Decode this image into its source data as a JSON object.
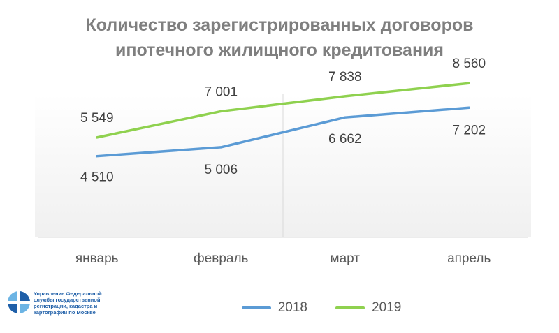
{
  "chart_data": {
    "type": "line",
    "title_line1": "Количество зарегистрированных договоров",
    "title_line2": "ипотечного жилищного кредитования",
    "categories": [
      "январь",
      "февраль",
      "март",
      "апрель"
    ],
    "series": [
      {
        "name": "2018",
        "values": [
          4510,
          5006,
          6662,
          7202
        ],
        "value_labels": [
          "4 510",
          "5 006",
          "6 662",
          "7 202"
        ],
        "color": "#5b9bd5"
      },
      {
        "name": "2019",
        "values": [
          5549,
          7001,
          7838,
          8560
        ],
        "value_labels": [
          "5 549",
          "7 001",
          "7 838",
          "8 560"
        ],
        "color": "#8fd14f"
      }
    ],
    "ylim": [
      0,
      9500
    ],
    "grid": true,
    "legend_position": "bottom"
  },
  "logo": {
    "text_lines": [
      "Управление Федеральной",
      "службы государственной",
      "регистрации, кадастра и",
      "картографии по Москве"
    ],
    "colors": [
      "#1f5fa8",
      "#6cb4e4",
      "#ffffff"
    ]
  }
}
